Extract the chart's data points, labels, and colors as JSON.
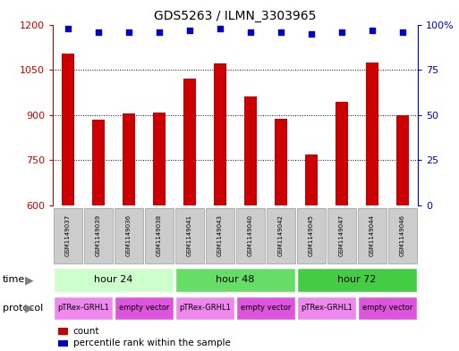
{
  "title": "GDS5263 / ILMN_3303965",
  "samples": [
    "GSM1149037",
    "GSM1149039",
    "GSM1149036",
    "GSM1149038",
    "GSM1149041",
    "GSM1149043",
    "GSM1149040",
    "GSM1149042",
    "GSM1149045",
    "GSM1149047",
    "GSM1149044",
    "GSM1149046"
  ],
  "counts": [
    1105,
    885,
    905,
    908,
    1020,
    1070,
    960,
    887,
    770,
    945,
    1075,
    900
  ],
  "percentiles": [
    98,
    96,
    96,
    96,
    97,
    98,
    96,
    96,
    95,
    96,
    97,
    96
  ],
  "ylim_left": [
    600,
    1200
  ],
  "ylim_right": [
    0,
    100
  ],
  "yticks_left": [
    600,
    750,
    900,
    1050,
    1200
  ],
  "yticks_right": [
    0,
    25,
    50,
    75,
    100
  ],
  "ytick_labels_right": [
    "0",
    "25",
    "50",
    "75",
    "100%"
  ],
  "bar_color": "#cc0000",
  "dot_color": "#0000cc",
  "time_groups": [
    {
      "label": "hour 24",
      "start": 0,
      "end": 4,
      "color": "#ccffcc"
    },
    {
      "label": "hour 48",
      "start": 4,
      "end": 8,
      "color": "#66dd66"
    },
    {
      "label": "hour 72",
      "start": 8,
      "end": 12,
      "color": "#44cc44"
    }
  ],
  "protocol_groups": [
    {
      "label": "pTRex-GRHL1",
      "start": 0,
      "end": 2,
      "color": "#ee88ee"
    },
    {
      "label": "empty vector",
      "start": 2,
      "end": 4,
      "color": "#dd55dd"
    },
    {
      "label": "pTRex-GRHL1",
      "start": 4,
      "end": 6,
      "color": "#ee88ee"
    },
    {
      "label": "empty vector",
      "start": 6,
      "end": 8,
      "color": "#dd55dd"
    },
    {
      "label": "pTRex-GRHL1",
      "start": 8,
      "end": 10,
      "color": "#ee88ee"
    },
    {
      "label": "empty vector",
      "start": 10,
      "end": 12,
      "color": "#dd55dd"
    }
  ],
  "sample_bg_color": "#cccccc",
  "sample_border_color": "#999999",
  "legend_count_color": "#cc0000",
  "legend_dot_color": "#0000cc",
  "time_label": "time",
  "protocol_label": "protocol",
  "bar_width": 0.4,
  "xlim": [
    -0.5,
    11.5
  ]
}
